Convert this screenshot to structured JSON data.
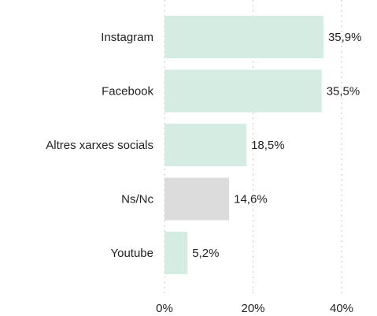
{
  "chart_data": {
    "type": "bar",
    "orientation": "horizontal",
    "categories": [
      "Instagram",
      "Facebook",
      "Altres xarxes socials",
      "Ns/Nc",
      "Youtube"
    ],
    "values": [
      35.9,
      35.5,
      18.5,
      14.6,
      5.2
    ],
    "value_labels": [
      "35,9%",
      "35,5%",
      "18,5%",
      "14,6%",
      "5,2%"
    ],
    "bar_colors": [
      "#d4ece1",
      "#d4ece1",
      "#d4ece1",
      "#dcdcdc",
      "#d4ece1"
    ],
    "x_ticks": [
      0,
      20,
      40
    ],
    "x_tick_labels": [
      "0%",
      "20%",
      "40%"
    ],
    "xlim": [
      0,
      40
    ],
    "grid": "vertical dotted",
    "title": "",
    "xlabel": "",
    "ylabel": ""
  }
}
